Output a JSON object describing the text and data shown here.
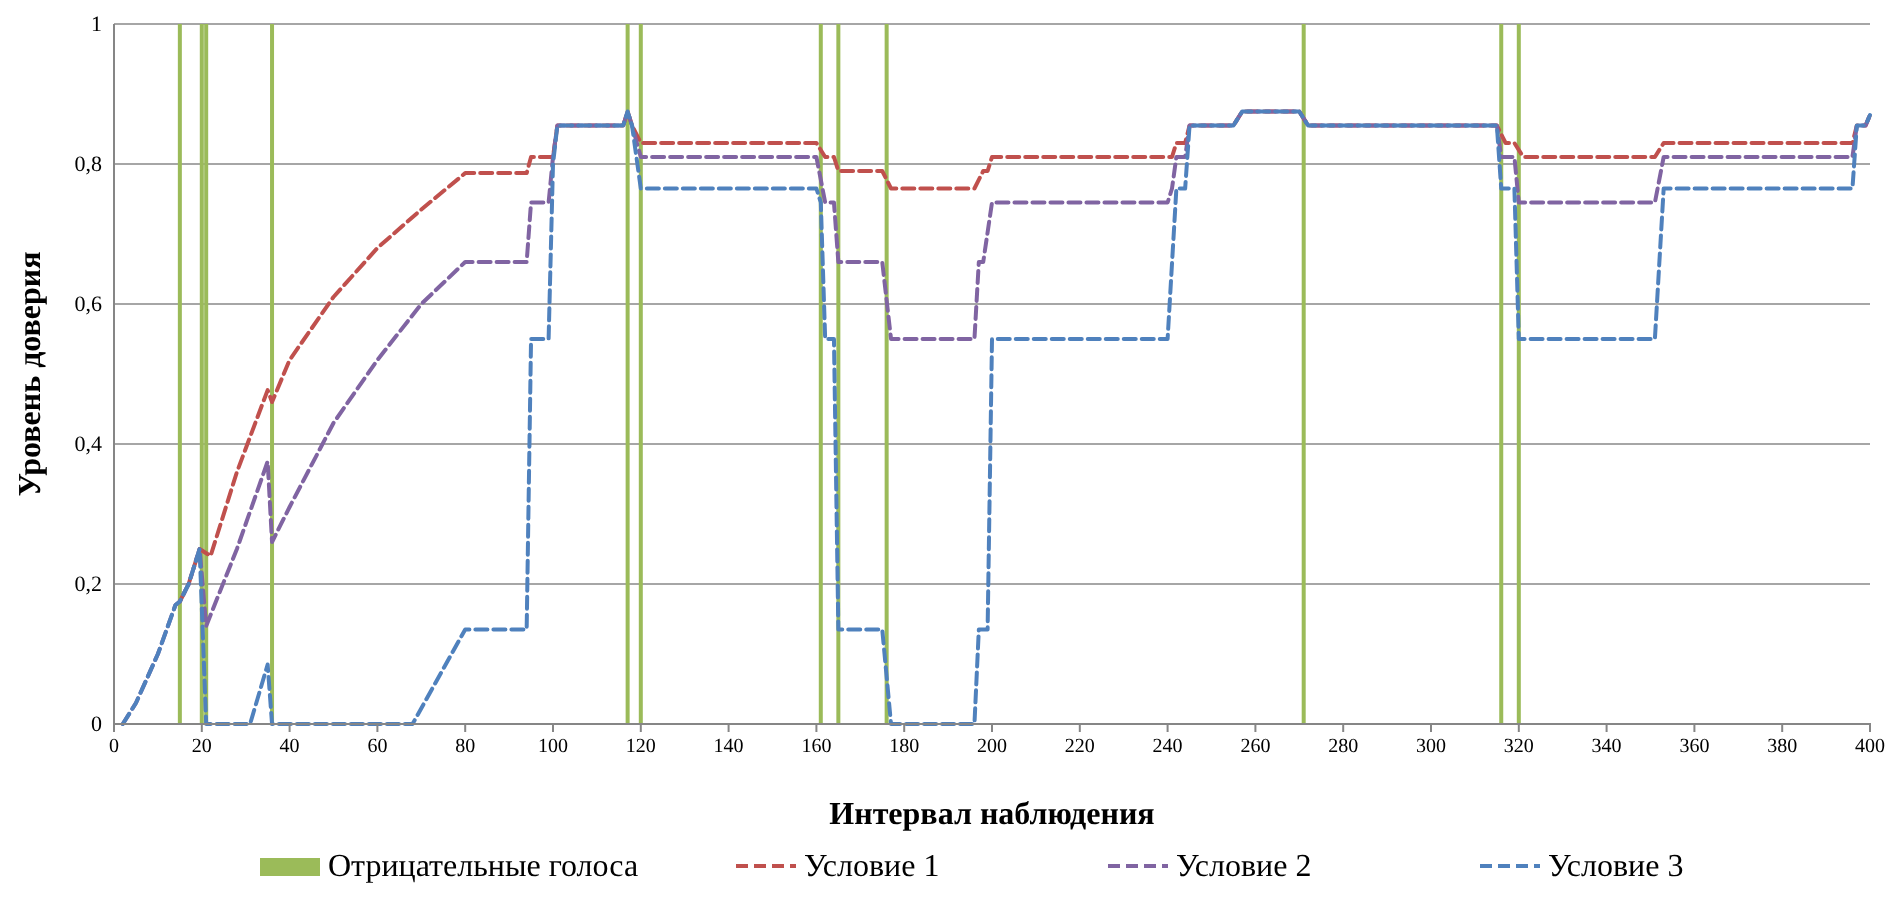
{
  "chart_data": {
    "type": "line",
    "xlabel": "Интервал наблюдения",
    "ylabel": "Уровень доверия",
    "xlim": [
      0,
      400
    ],
    "ylim": [
      0,
      1
    ],
    "xticks": [
      0,
      20,
      40,
      60,
      80,
      100,
      120,
      140,
      160,
      180,
      200,
      220,
      240,
      260,
      280,
      300,
      320,
      340,
      360,
      380,
      400
    ],
    "yticks": [
      0,
      {
        "value": 0.2,
        "label": "0,2"
      },
      {
        "value": 0.4,
        "label": "0,4"
      },
      {
        "value": 0.6,
        "label": "0,6"
      },
      {
        "value": 0.8,
        "label": "0,8"
      },
      1
    ],
    "grid": "y",
    "legend": "bottom",
    "series": [
      {
        "name": "Отрицательные голоса",
        "type": "bar",
        "color": "#9bbb59",
        "x": [
          15,
          20,
          21,
          36,
          117,
          120,
          161,
          165,
          176,
          271,
          316,
          320
        ],
        "values": [
          1,
          1,
          1,
          1,
          1,
          1,
          1,
          1,
          1,
          1,
          1,
          1
        ]
      },
      {
        "name": "Условие 1",
        "color": "#c0504d",
        "line_style": "dashed",
        "x": [
          15,
          17,
          19.5,
          22,
          28,
          35,
          36,
          40,
          50,
          60,
          70,
          80,
          94,
          95,
          100,
          101,
          116,
          117,
          118,
          120,
          160,
          162,
          164,
          165,
          175,
          177,
          196,
          198,
          199,
          200,
          240,
          241,
          242,
          244,
          245,
          255,
          257,
          270,
          272,
          315,
          317,
          319,
          321,
          351,
          353,
          396,
          397,
          399,
          400
        ],
        "values": [
          0.175,
          0.2,
          0.25,
          0.24,
          0.36,
          0.477,
          0.46,
          0.52,
          0.61,
          0.68,
          0.735,
          0.787,
          0.787,
          0.81,
          0.81,
          0.855,
          0.855,
          0.875,
          0.855,
          0.83,
          0.83,
          0.81,
          0.81,
          0.79,
          0.79,
          0.765,
          0.765,
          0.79,
          0.79,
          0.81,
          0.81,
          0.81,
          0.83,
          0.83,
          0.855,
          0.855,
          0.875,
          0.875,
          0.855,
          0.855,
          0.83,
          0.83,
          0.81,
          0.81,
          0.83,
          0.83,
          0.855,
          0.855,
          0.87
        ]
      },
      {
        "name": "Условие 2",
        "color": "#8064a2",
        "line_style": "dashed",
        "x": [
          2,
          5,
          10,
          14,
          15,
          17,
          19.5,
          21,
          28,
          35,
          36,
          40,
          50,
          60,
          70,
          80,
          94,
          95,
          99,
          100,
          101,
          116,
          117,
          118,
          120,
          160,
          162,
          164,
          165,
          175,
          177,
          196,
          197,
          198,
          200,
          240,
          241,
          242,
          244,
          245,
          255,
          257,
          270,
          272,
          315,
          316,
          319,
          320,
          351,
          353,
          396,
          397,
          399,
          400
        ],
        "values": [
          0,
          0.03,
          0.1,
          0.17,
          0.175,
          0.2,
          0.25,
          0.14,
          0.25,
          0.375,
          0.26,
          0.31,
          0.43,
          0.52,
          0.6,
          0.66,
          0.66,
          0.745,
          0.745,
          0.81,
          0.855,
          0.855,
          0.875,
          0.855,
          0.81,
          0.81,
          0.745,
          0.745,
          0.66,
          0.66,
          0.55,
          0.55,
          0.66,
          0.66,
          0.745,
          0.745,
          0.765,
          0.81,
          0.81,
          0.855,
          0.855,
          0.875,
          0.875,
          0.855,
          0.855,
          0.81,
          0.81,
          0.745,
          0.745,
          0.81,
          0.81,
          0.855,
          0.855,
          0.87
        ]
      },
      {
        "name": "Условие 3",
        "color": "#4f81bd",
        "line_style": "dashed",
        "x": [
          2,
          5,
          10,
          14,
          15,
          17,
          19.5,
          21,
          31,
          35,
          36,
          68,
          80,
          94,
          95,
          99,
          100,
          101,
          116,
          117,
          118,
          120,
          160,
          161,
          162,
          164,
          165,
          175,
          177,
          196,
          197,
          199,
          200,
          240,
          242,
          244,
          245,
          255,
          257,
          270,
          272,
          315,
          316,
          319,
          320,
          351,
          353,
          396,
          397,
          399,
          400
        ],
        "values": [
          0,
          0.03,
          0.1,
          0.17,
          0.175,
          0.2,
          0.25,
          0,
          0,
          0.085,
          0,
          0,
          0.135,
          0.135,
          0.55,
          0.55,
          0.8,
          0.855,
          0.855,
          0.875,
          0.855,
          0.765,
          0.765,
          0.745,
          0.55,
          0.55,
          0.135,
          0.135,
          0,
          0,
          0.135,
          0.135,
          0.55,
          0.55,
          0.765,
          0.765,
          0.855,
          0.855,
          0.875,
          0.875,
          0.855,
          0.855,
          0.765,
          0.765,
          0.55,
          0.55,
          0.765,
          0.765,
          0.855,
          0.855,
          0.87
        ]
      }
    ]
  }
}
